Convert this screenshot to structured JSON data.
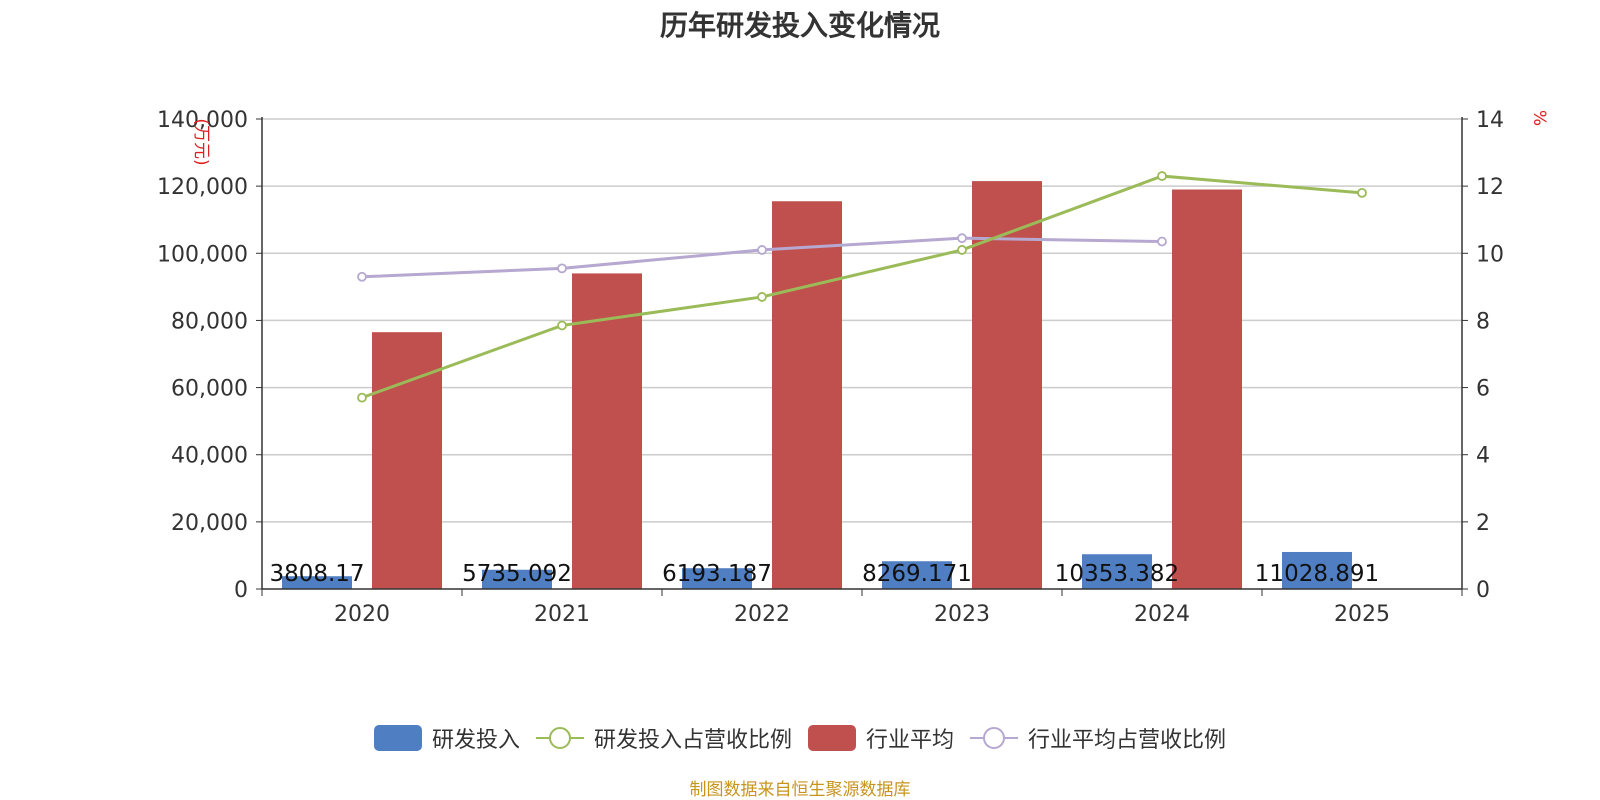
{
  "title": "历年研发投入变化情况",
  "source": "制图数据来自恒生聚源数据库",
  "legend": {
    "rd_investment": "研发投入",
    "rd_ratio": "研发投入占营收比例",
    "industry_avg": "行业平均",
    "industry_ratio": "行业平均占营收比例"
  },
  "colors": {
    "rd_investment": "#4f7ec2",
    "industry_avg": "#c0504d",
    "rd_ratio": "#9bbb59",
    "industry_ratio": "#b6a8d0",
    "axis_unit": "#e02020"
  },
  "chart_data": {
    "type": "bar",
    "title": "历年研发投入变化情况",
    "categories": [
      "2020",
      "2021",
      "2022",
      "2023",
      "2024",
      "2025"
    ],
    "y_left": {
      "unit": "(万元)",
      "ylim": [
        0,
        140000
      ],
      "ticks": [
        "0",
        "20,000",
        "40,000",
        "60,000",
        "80,000",
        "100,000",
        "120,000",
        "140,000"
      ]
    },
    "y_right": {
      "unit": "%",
      "ylim": [
        0,
        14
      ],
      "ticks": [
        "0",
        "2",
        "4",
        "6",
        "8",
        "10",
        "12",
        "14"
      ]
    },
    "series": [
      {
        "name": "研发投入",
        "type": "bar",
        "axis": "left",
        "values": [
          3808.17,
          5735.092,
          6193.187,
          8269.171,
          10353.382,
          11028.891
        ],
        "labels": [
          "3808.17",
          "5735.092",
          "6193.187",
          "8269.171",
          "10353.382",
          "11028.891"
        ]
      },
      {
        "name": "行业平均",
        "type": "bar",
        "axis": "left",
        "values": [
          76500,
          94000,
          115500,
          121500,
          119000,
          null
        ]
      },
      {
        "name": "研发投入占营收比例",
        "type": "line",
        "axis": "right",
        "values": [
          5.7,
          7.85,
          8.7,
          10.1,
          12.3,
          11.8
        ]
      },
      {
        "name": "行业平均占营收比例",
        "type": "line",
        "axis": "right",
        "values": [
          9.3,
          9.55,
          10.1,
          10.45,
          10.35,
          null
        ]
      }
    ],
    "grid": true,
    "legend_position": "bottom"
  }
}
